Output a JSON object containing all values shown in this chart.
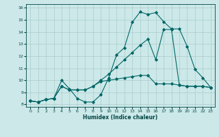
{
  "xlabel": "Humidex (Indice chaleur)",
  "xlim": [
    -0.5,
    23.5
  ],
  "ylim": [
    7.8,
    16.3
  ],
  "xticks": [
    0,
    1,
    2,
    3,
    4,
    5,
    6,
    7,
    8,
    9,
    10,
    11,
    12,
    13,
    14,
    15,
    16,
    17,
    18,
    19,
    20,
    21,
    22,
    23
  ],
  "yticks": [
    8,
    9,
    10,
    11,
    12,
    13,
    14,
    15,
    16
  ],
  "background_color": "#cce8e8",
  "grid_color": "#aacccc",
  "line_color": "#006666",
  "line1_x": [
    0,
    1,
    2,
    3,
    4,
    5,
    6,
    7,
    8,
    9,
    10,
    11,
    12,
    13,
    14,
    15,
    16,
    17,
    18,
    19,
    20,
    21,
    22,
    23
  ],
  "line1_y": [
    8.3,
    8.2,
    8.4,
    8.5,
    10.0,
    9.3,
    8.5,
    8.2,
    8.2,
    8.8,
    10.2,
    12.1,
    12.7,
    14.8,
    15.65,
    15.45,
    15.6,
    14.85,
    14.25,
    14.25,
    12.8,
    10.9,
    10.2,
    9.4
  ],
  "line2_x": [
    0,
    1,
    2,
    3,
    4,
    5,
    6,
    7,
    8,
    9,
    10,
    11,
    12,
    13,
    14,
    15,
    16,
    17,
    18,
    19,
    20,
    21,
    22,
    23
  ],
  "line2_y": [
    8.3,
    8.2,
    8.4,
    8.5,
    9.5,
    9.2,
    9.2,
    9.2,
    9.5,
    10.0,
    10.5,
    11.1,
    11.7,
    12.3,
    12.9,
    13.4,
    11.7,
    14.2,
    14.2,
    9.6,
    9.5,
    9.5,
    9.5,
    9.4
  ],
  "line3_x": [
    0,
    1,
    2,
    3,
    4,
    5,
    6,
    7,
    8,
    9,
    10,
    11,
    12,
    13,
    14,
    15,
    16,
    17,
    18,
    19,
    20,
    21,
    22,
    23
  ],
  "line3_y": [
    8.3,
    8.2,
    8.4,
    8.5,
    9.5,
    9.2,
    9.2,
    9.2,
    9.5,
    9.9,
    10.0,
    10.1,
    10.2,
    10.3,
    10.4,
    10.4,
    9.7,
    9.7,
    9.7,
    9.6,
    9.5,
    9.5,
    9.5,
    9.4
  ]
}
